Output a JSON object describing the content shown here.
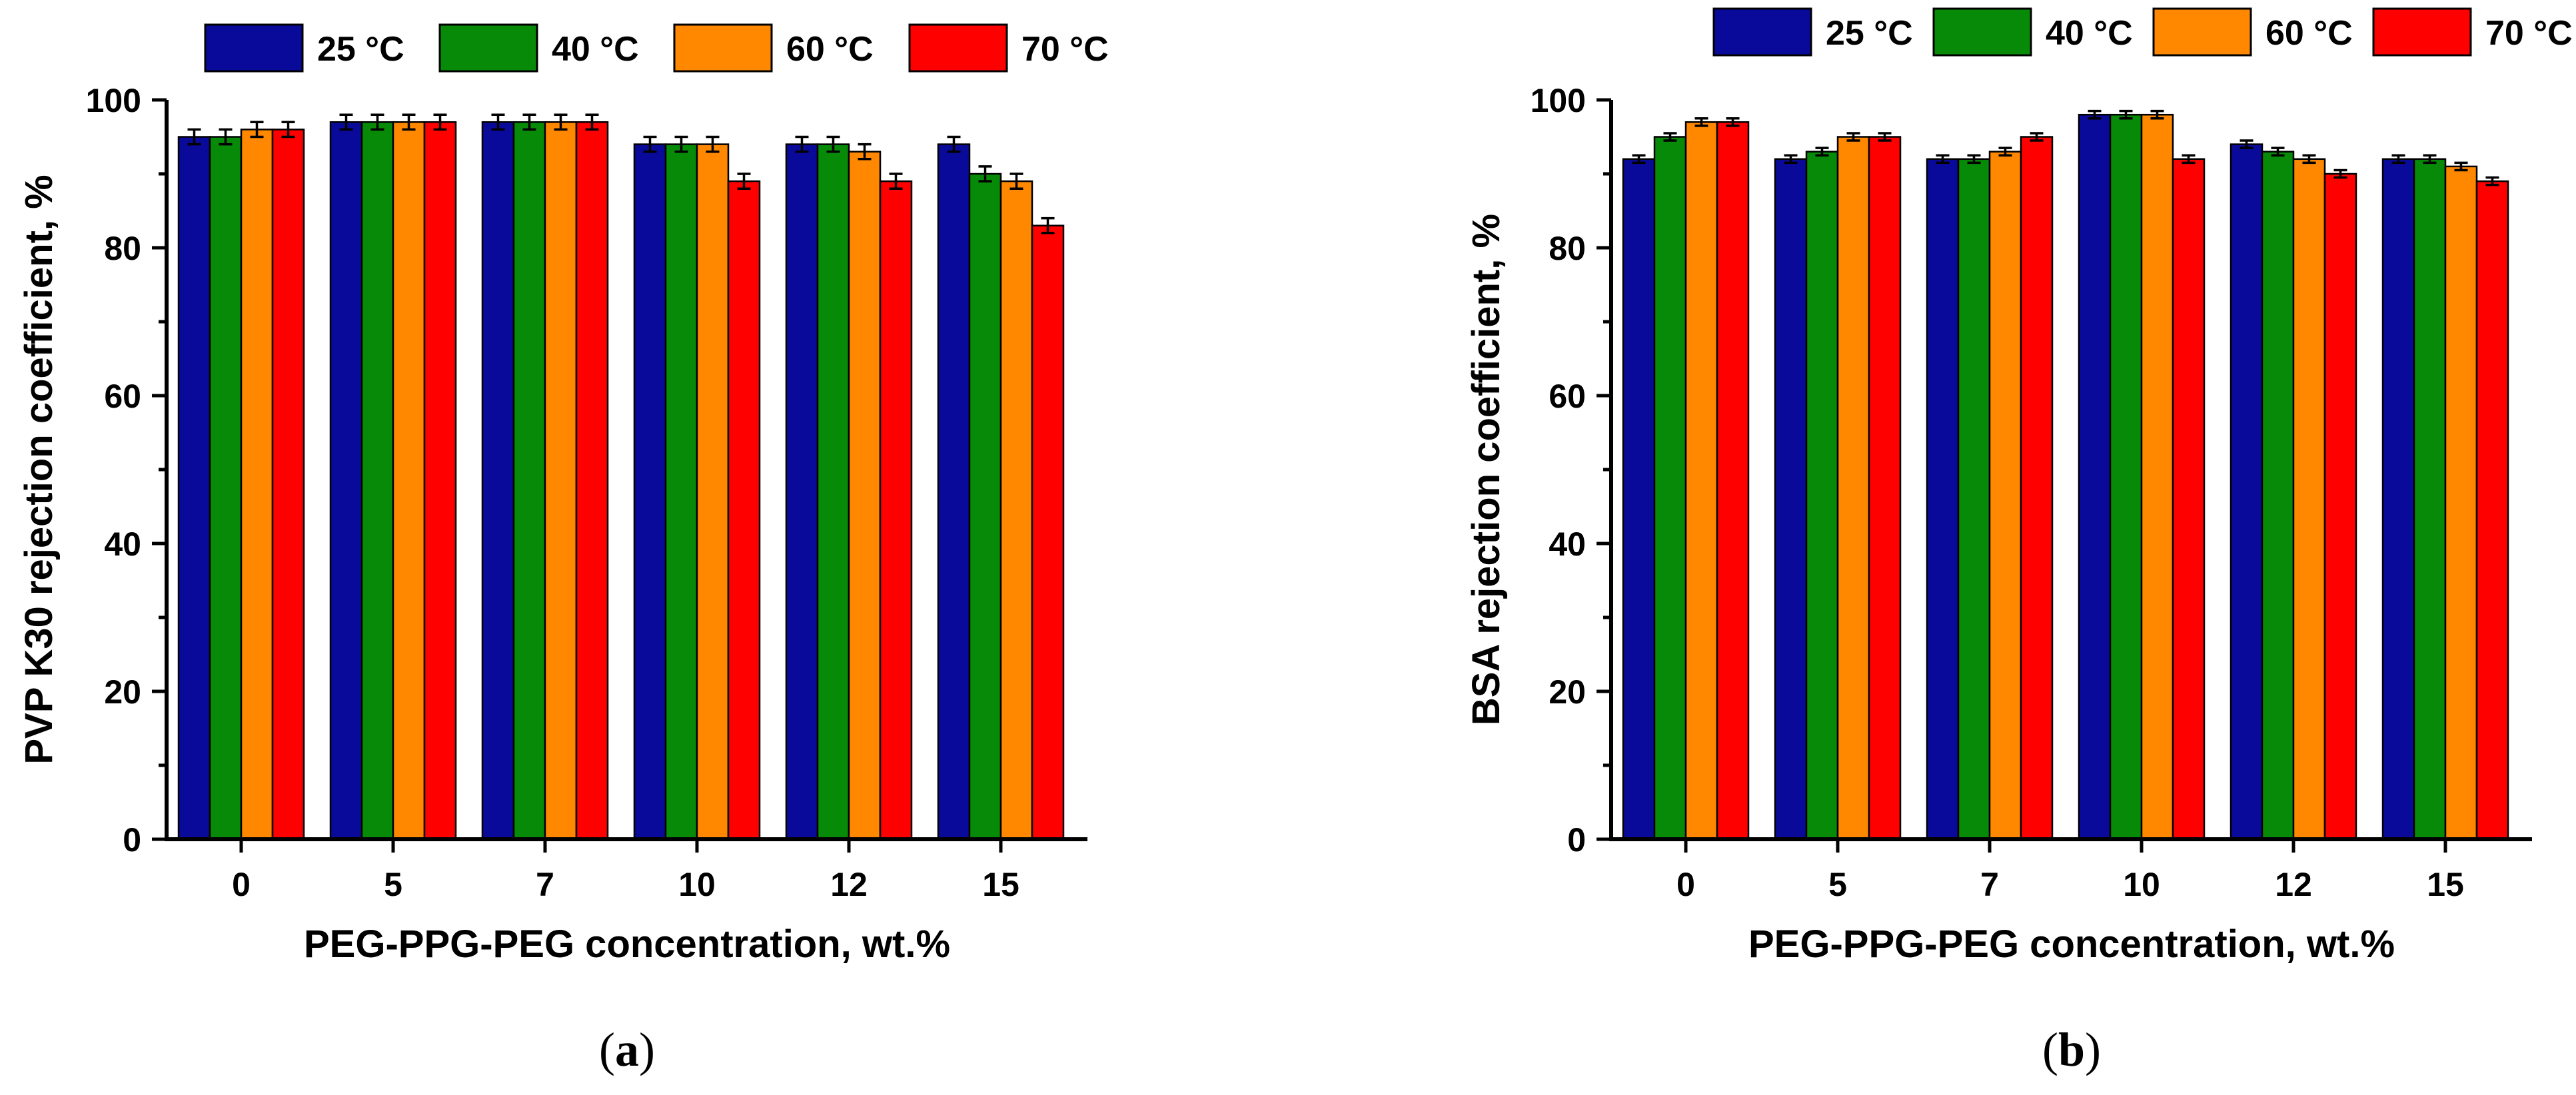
{
  "chart_data": [
    {
      "type": "bar",
      "panel_label": "a",
      "categories": [
        "0",
        "5",
        "7",
        "10",
        "12",
        "15"
      ],
      "series": [
        {
          "name": "25 °C",
          "color": "#0a0a9a",
          "values": [
            95,
            97,
            97,
            94,
            94,
            94
          ],
          "errors": [
            1,
            1,
            1,
            1,
            1,
            1
          ]
        },
        {
          "name": "40 °C",
          "color": "#078a07",
          "values": [
            95,
            97,
            97,
            94,
            94,
            90
          ],
          "errors": [
            1,
            1,
            1,
            1,
            1,
            1
          ]
        },
        {
          "name": "60 °C",
          "color": "#ff8800",
          "values": [
            96,
            97,
            97,
            94,
            93,
            89
          ],
          "errors": [
            1,
            1,
            1,
            1,
            1,
            1
          ]
        },
        {
          "name": "70 °C",
          "color": "#ff0000",
          "values": [
            96,
            97,
            97,
            89,
            89,
            83
          ],
          "errors": [
            1,
            1,
            1,
            1,
            1,
            1
          ]
        }
      ],
      "xlabel": "PEG-PPG-PEG concentration, wt.%",
      "ylabel": "PVP K30 rejection coefficient, %",
      "ylim": [
        0,
        100
      ],
      "yticks": [
        "0",
        "20",
        "40",
        "60",
        "80",
        "100"
      ],
      "legend_position": "top"
    },
    {
      "type": "bar",
      "panel_label": "b",
      "categories": [
        "0",
        "5",
        "7",
        "10",
        "12",
        "15"
      ],
      "series": [
        {
          "name": "25 °C",
          "color": "#0a0a9a",
          "values": [
            92,
            92,
            92,
            98,
            94,
            92
          ],
          "errors": [
            0.5,
            0.5,
            0.5,
            0.5,
            0.5,
            0.5
          ]
        },
        {
          "name": "40 °C",
          "color": "#078a07",
          "values": [
            95,
            93,
            92,
            98,
            93,
            92
          ],
          "errors": [
            0.5,
            0.5,
            0.5,
            0.5,
            0.5,
            0.5
          ]
        },
        {
          "name": "60 °C",
          "color": "#ff8800",
          "values": [
            97,
            95,
            93,
            98,
            92,
            91
          ],
          "errors": [
            0.5,
            0.5,
            0.5,
            0.5,
            0.5,
            0.5
          ]
        },
        {
          "name": "70 °C",
          "color": "#ff0000",
          "values": [
            97,
            95,
            95,
            92,
            90,
            89
          ],
          "errors": [
            0.5,
            0.5,
            0.5,
            0.5,
            0.5,
            0.5
          ]
        }
      ],
      "xlabel": "PEG-PPG-PEG concentration, wt.%",
      "ylabel": "BSA rejection coefficient, %",
      "ylim": [
        0,
        100
      ],
      "yticks": [
        "0",
        "20",
        "40",
        "60",
        "80",
        "100"
      ],
      "legend_position": "top"
    }
  ]
}
